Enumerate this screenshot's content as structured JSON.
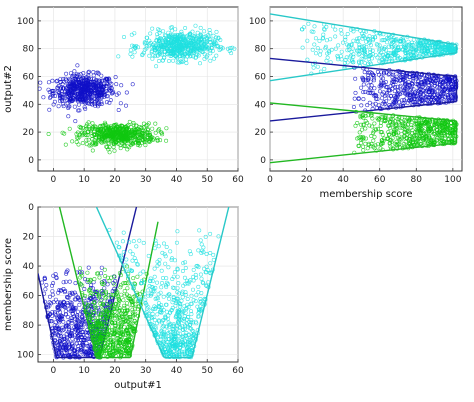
{
  "colors": {
    "blue": "#1010c8",
    "green": "#10c810",
    "cyan": "#20e0e0",
    "lineBlue": "#1a1a9c",
    "lineGreen": "#22b822",
    "lineCyan": "#28c8c8"
  },
  "chart_data": [
    {
      "type": "scatter",
      "id": "p1",
      "xlabel": "",
      "ylabel": "output#2",
      "xlim": [
        -5,
        60
      ],
      "ylim": [
        -8,
        110
      ],
      "xticks": [
        0,
        10,
        20,
        30,
        40,
        50,
        60
      ],
      "yticks": [
        0,
        20,
        40,
        60,
        80,
        100
      ],
      "clusters": [
        {
          "color": "blue",
          "cx": 10,
          "cy": 50,
          "sx": 5,
          "sy": 5.5,
          "n": 550
        },
        {
          "color": "green",
          "cx": 21,
          "cy": 18,
          "sx": 6,
          "sy": 4,
          "n": 550
        },
        {
          "color": "cyan",
          "cx": 41,
          "cy": 82,
          "sx": 6,
          "sy": 5,
          "n": 550
        }
      ]
    },
    {
      "type": "scatter",
      "id": "p2",
      "xlabel": "membership score",
      "ylabel": "",
      "xlim": [
        0,
        105
      ],
      "ylim": [
        -8,
        110
      ],
      "xticks": [
        0,
        20,
        40,
        60,
        80,
        100
      ],
      "yticks": [
        0,
        20,
        40,
        60,
        80,
        100
      ],
      "bands": [
        {
          "color": "cyan",
          "lineColor": "lineCyan",
          "upper": [
            [
              0,
              105
            ],
            [
              102,
              83
            ]
          ],
          "lower": [
            [
              0,
              57
            ],
            [
              102,
              77
            ]
          ],
          "xmin": 15,
          "n": 520
        },
        {
          "color": "blue",
          "lineColor": "lineBlue",
          "upper": [
            [
              0,
              73
            ],
            [
              102,
              60
            ]
          ],
          "lower": [
            [
              0,
              28
            ],
            [
              102,
              42
            ]
          ],
          "xmin": 45,
          "n": 520
        },
        {
          "color": "green",
          "lineColor": "lineGreen",
          "upper": [
            [
              0,
              41
            ],
            [
              102,
              28
            ]
          ],
          "lower": [
            [
              0,
              -2
            ],
            [
              102,
              12
            ]
          ],
          "xmin": 45,
          "n": 520
        }
      ]
    },
    {
      "type": "scatter",
      "id": "p3",
      "xlabel": "output#1",
      "ylabel": "membership score",
      "xlim": [
        -5,
        60
      ],
      "ylim": [
        0,
        105
      ],
      "yreversed": true,
      "xticks": [
        0,
        10,
        20,
        30,
        40,
        50,
        60
      ],
      "yticks": [
        0,
        20,
        40,
        60,
        80,
        100
      ],
      "vees": [
        {
          "color": "blue",
          "lineColor": "lineBlue",
          "left": [
            [
              -5,
              45
            ],
            [
              1,
              102
            ]
          ],
          "right": [
            [
              27,
              0
            ],
            [
              15,
              102
            ]
          ],
          "ymin": 40,
          "n": 600
        },
        {
          "color": "green",
          "lineColor": "lineGreen",
          "left": [
            [
              2,
              0
            ],
            [
              14,
              102
            ]
          ],
          "right": [
            [
              34,
              10
            ],
            [
              25,
              102
            ]
          ],
          "ymin": 40,
          "n": 600
        },
        {
          "color": "cyan",
          "lineColor": "lineCyan",
          "left": [
            [
              14,
              0
            ],
            [
              36,
              102
            ]
          ],
          "right": [
            [
              57,
              0
            ],
            [
              45,
              102
            ]
          ],
          "ymin": 15,
          "n": 600
        }
      ]
    }
  ]
}
